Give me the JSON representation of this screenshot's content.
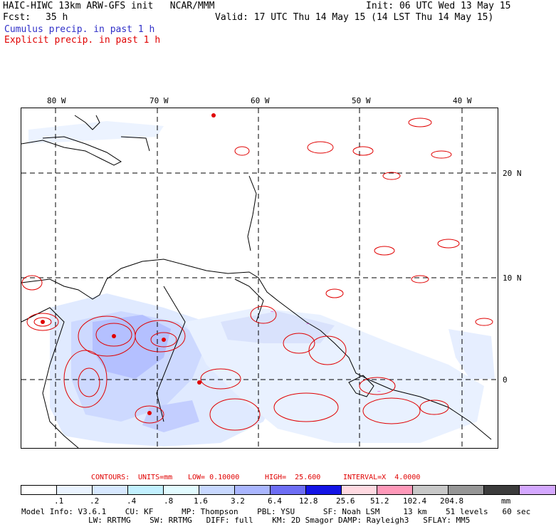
{
  "header": {
    "title": "HAIC-HIWC 13km ARW-GFS init   NCAR/MMM",
    "init": "Init: 06 UTC Wed 13 May 15",
    "fcst_label": "Fcst:",
    "fcst_value": "35 h",
    "valid": "Valid: 17 UTC Thu 14 May 15 (14 LST Thu 14 May 15)",
    "cumulus": "Cumulus precip. in past 1 h",
    "explicit": "Explicit precip. in past 1 h"
  },
  "axes": {
    "lon_labels": [
      "80 W",
      "70 W",
      "60 W",
      "50 W",
      "40 W"
    ],
    "lat_labels": [
      "20 N",
      "10 N",
      "0"
    ]
  },
  "contours": {
    "label": "CONTOURS:",
    "units": "UNITS=mm",
    "low": "LOW= 0.10000",
    "high": "HIGH=  25.600",
    "interval": "INTERVAL=X  4.0000"
  },
  "legend": {
    "colors": [
      "#ffffff",
      "#eaf3ff",
      "#d7e8ff",
      "#c2f0ff",
      "#e2fbff",
      "#c8d8ff",
      "#aab6ff",
      "#6e6ef5",
      "#1414e6",
      "#ffd9e1",
      "#ff99b9",
      "#c8c8c8",
      "#969696",
      "#3c3c3c",
      "#d4a8ff"
    ],
    "tick_labels": [
      ".1",
      ".2",
      ".4",
      ".8",
      "1.6",
      "3.2",
      "6.4",
      "12.8",
      "25.6",
      "51.2",
      "102.4",
      "204.8"
    ],
    "unit": "mm"
  },
  "model_info": {
    "line1": "Model Info: V3.6.1    CU: KF      MP: Thompson    PBL: YSU      SF: Noah LSM     13 km    51 levels   60 sec",
    "line2": "LW: RRTMG    SW: RRTMG   DIFF: full    KM: 2D Smagor DAMP: Rayleigh3   SFLAY: MM5"
  }
}
